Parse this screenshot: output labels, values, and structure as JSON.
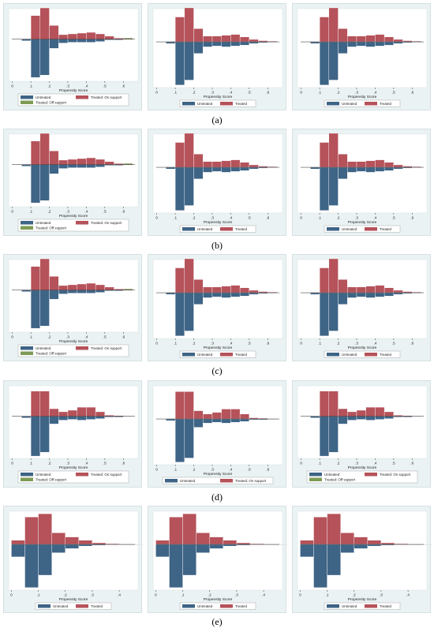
{
  "colors": {
    "untreated": "#3e6486",
    "treated": "#b5525a",
    "off_support": "#7d9b55",
    "panel_bg": "#eaf2f3",
    "plot_bg": "#ffffff"
  },
  "row_labels": [
    "(a)",
    "(b)",
    "(c)",
    "(d)",
    "(e)"
  ],
  "chart_data": [
    {
      "type": "bar",
      "row": "a",
      "col": 0,
      "xlabel": "Propensity Score",
      "xticks": [
        0,
        0.1,
        0.2,
        0.3,
        0.4,
        0.5,
        0.6
      ],
      "xtick_labels": [
        "0",
        ".1",
        ".2",
        ".3",
        ".4",
        ".5",
        ".6"
      ],
      "xlim": [
        -0.02,
        0.68
      ],
      "ylim": [
        -0.55,
        0.4
      ],
      "bin_width": 0.05,
      "bins": [
        0.075,
        0.125,
        0.175,
        0.225,
        0.275,
        0.325,
        0.375,
        0.425,
        0.475,
        0.525,
        0.575,
        0.625
      ],
      "untreated": [
        0.02,
        0.5,
        0.47,
        0.12,
        0.05,
        0.04,
        0.04,
        0.04,
        0.03,
        0.01,
        0.01,
        0.005
      ],
      "treated": [
        0.005,
        0.31,
        0.41,
        0.18,
        0.06,
        0.07,
        0.08,
        0.09,
        0.07,
        0.04,
        0.015,
        0.01
      ],
      "off_support": [
        0,
        0,
        0,
        0,
        0,
        0,
        0,
        0,
        0,
        0,
        0,
        0.01
      ],
      "legend": [
        "Untreated",
        "Treated: On support",
        "Treated: Off support"
      ]
    },
    {
      "type": "bar",
      "row": "a",
      "col": 1,
      "xlabel": "Propensity Score",
      "xticks": [
        0,
        0.1,
        0.2,
        0.3,
        0.4,
        0.5,
        0.6
      ],
      "xtick_labels": [
        "0",
        ".1",
        ".2",
        ".3",
        ".4",
        ".5",
        ".6"
      ],
      "xlim": [
        -0.02,
        0.68
      ],
      "ylim": [
        -0.55,
        0.4
      ],
      "bin_width": 0.05,
      "bins": [
        0.075,
        0.125,
        0.175,
        0.225,
        0.275,
        0.325,
        0.375,
        0.425,
        0.475,
        0.525,
        0.575,
        0.625
      ],
      "untreated": [
        0.02,
        0.52,
        0.46,
        0.14,
        0.06,
        0.05,
        0.06,
        0.05,
        0.04,
        0.02,
        0.01,
        0.005
      ],
      "treated": [
        0.005,
        0.3,
        0.41,
        0.16,
        0.07,
        0.07,
        0.08,
        0.09,
        0.06,
        0.03,
        0.015,
        0.01
      ],
      "legend": [
        "Untreated",
        "Treated"
      ]
    },
    {
      "type": "bar",
      "row": "a",
      "col": 2,
      "xlabel": "Propensity Score",
      "xticks": [
        0,
        0.1,
        0.2,
        0.3,
        0.4,
        0.5,
        0.6
      ],
      "xtick_labels": [
        "0",
        ".1",
        ".2",
        ".3",
        ".4",
        ".5",
        ".6"
      ],
      "xlim": [
        -0.02,
        0.68
      ],
      "ylim": [
        -0.55,
        0.4
      ],
      "bin_width": 0.05,
      "bins": [
        0.075,
        0.125,
        0.175,
        0.225,
        0.275,
        0.325,
        0.375,
        0.425,
        0.475,
        0.525,
        0.575,
        0.625
      ],
      "untreated": [
        0.02,
        0.52,
        0.46,
        0.14,
        0.06,
        0.05,
        0.06,
        0.05,
        0.04,
        0.02,
        0.01,
        0.005
      ],
      "treated": [
        0.005,
        0.3,
        0.41,
        0.16,
        0.07,
        0.07,
        0.08,
        0.09,
        0.06,
        0.03,
        0.015,
        0.01
      ],
      "legend": [
        "Untreated",
        "Treated"
      ]
    },
    {
      "type": "bar",
      "row": "b",
      "col": 0,
      "xlabel": "Propensity Score",
      "xticks": [
        0,
        0.1,
        0.2,
        0.3,
        0.4,
        0.5,
        0.6
      ],
      "xtick_labels": [
        "0",
        ".1",
        ".2",
        ".3",
        ".4",
        ".5",
        ".6"
      ],
      "xlim": [
        -0.02,
        0.68
      ],
      "ylim": [
        -0.55,
        0.4
      ],
      "bin_width": 0.05,
      "bins": [
        0.075,
        0.125,
        0.175,
        0.225,
        0.275,
        0.325,
        0.375,
        0.425,
        0.475,
        0.525,
        0.575,
        0.625
      ],
      "untreated": [
        0.02,
        0.5,
        0.47,
        0.12,
        0.05,
        0.04,
        0.04,
        0.04,
        0.03,
        0.01,
        0.01,
        0.005
      ],
      "treated": [
        0.005,
        0.31,
        0.41,
        0.18,
        0.06,
        0.07,
        0.08,
        0.09,
        0.07,
        0.04,
        0.015,
        0.01
      ],
      "off_support": [
        0,
        0,
        0,
        0,
        0,
        0,
        0,
        0,
        0,
        0,
        0,
        0.01
      ],
      "legend": [
        "Untreated",
        "Treated: On support",
        "Treated: Off support"
      ]
    },
    {
      "type": "bar",
      "row": "b",
      "col": 1,
      "xlabel": "Propensity Score",
      "xticks": [
        0,
        0.1,
        0.2,
        0.3,
        0.4,
        0.5,
        0.6
      ],
      "xtick_labels": [
        "0",
        ".1",
        ".2",
        ".3",
        ".4",
        ".5",
        ".6"
      ],
      "xlim": [
        -0.02,
        0.68
      ],
      "ylim": [
        -0.55,
        0.4
      ],
      "bin_width": 0.05,
      "bins": [
        0.075,
        0.125,
        0.175,
        0.225,
        0.275,
        0.325,
        0.375,
        0.425,
        0.475,
        0.525,
        0.575,
        0.625
      ],
      "untreated": [
        0.02,
        0.52,
        0.46,
        0.14,
        0.06,
        0.05,
        0.06,
        0.05,
        0.04,
        0.02,
        0.01,
        0.005
      ],
      "treated": [
        0.005,
        0.3,
        0.41,
        0.16,
        0.07,
        0.07,
        0.08,
        0.09,
        0.06,
        0.03,
        0.015,
        0.01
      ],
      "legend": [
        "Untreated",
        "Treated"
      ]
    },
    {
      "type": "bar",
      "row": "b",
      "col": 2,
      "xlabel": "Propensity Score",
      "xticks": [
        0,
        0.1,
        0.2,
        0.3,
        0.4,
        0.5,
        0.6
      ],
      "xtick_labels": [
        "0",
        ".1",
        ".2",
        ".3",
        ".4",
        ".5",
        ".6"
      ],
      "xlim": [
        -0.02,
        0.68
      ],
      "ylim": [
        -0.55,
        0.4
      ],
      "bin_width": 0.05,
      "bins": [
        0.075,
        0.125,
        0.175,
        0.225,
        0.275,
        0.325,
        0.375,
        0.425,
        0.475,
        0.525,
        0.575,
        0.625
      ],
      "untreated": [
        0.02,
        0.52,
        0.46,
        0.14,
        0.06,
        0.05,
        0.06,
        0.05,
        0.04,
        0.02,
        0.01,
        0.005
      ],
      "treated": [
        0.005,
        0.3,
        0.41,
        0.16,
        0.07,
        0.07,
        0.08,
        0.09,
        0.06,
        0.03,
        0.015,
        0.01
      ],
      "legend": [
        "Untreated",
        "Treated"
      ]
    },
    {
      "type": "bar",
      "row": "c",
      "col": 0,
      "xlabel": "Propensity Score",
      "xticks": [
        0,
        0.1,
        0.2,
        0.3,
        0.4,
        0.5,
        0.6
      ],
      "xtick_labels": [
        "0",
        ".1",
        ".2",
        ".3",
        ".4",
        ".5",
        ".6"
      ],
      "xlim": [
        -0.02,
        0.68
      ],
      "ylim": [
        -0.55,
        0.4
      ],
      "bin_width": 0.05,
      "bins": [
        0.075,
        0.125,
        0.175,
        0.225,
        0.275,
        0.325,
        0.375,
        0.425,
        0.475,
        0.525,
        0.575,
        0.625
      ],
      "untreated": [
        0.02,
        0.5,
        0.47,
        0.12,
        0.05,
        0.04,
        0.04,
        0.04,
        0.03,
        0.01,
        0.01,
        0.005
      ],
      "treated": [
        0.005,
        0.31,
        0.41,
        0.18,
        0.06,
        0.07,
        0.08,
        0.09,
        0.07,
        0.04,
        0.015,
        0.01
      ],
      "off_support": [
        0,
        0,
        0,
        0,
        0,
        0,
        0,
        0,
        0,
        0,
        0,
        0.01
      ],
      "legend": [
        "Untreated",
        "Treated: On support",
        "Treated: Off support"
      ]
    },
    {
      "type": "bar",
      "row": "c",
      "col": 1,
      "xlabel": "Propensity Score",
      "xticks": [
        0,
        0.1,
        0.2,
        0.3,
        0.4,
        0.5,
        0.6
      ],
      "xtick_labels": [
        "0",
        ".1",
        ".2",
        ".3",
        ".4",
        ".5",
        ".6"
      ],
      "xlim": [
        -0.02,
        0.68
      ],
      "ylim": [
        -0.55,
        0.4
      ],
      "bin_width": 0.05,
      "bins": [
        0.075,
        0.125,
        0.175,
        0.225,
        0.275,
        0.325,
        0.375,
        0.425,
        0.475,
        0.525,
        0.575,
        0.625
      ],
      "untreated": [
        0.02,
        0.52,
        0.46,
        0.14,
        0.06,
        0.05,
        0.06,
        0.05,
        0.04,
        0.02,
        0.01,
        0.005
      ],
      "treated": [
        0.005,
        0.3,
        0.41,
        0.16,
        0.07,
        0.07,
        0.08,
        0.09,
        0.06,
        0.03,
        0.015,
        0.01
      ],
      "legend": [
        "Untreated",
        "Treated"
      ]
    },
    {
      "type": "bar",
      "row": "c",
      "col": 2,
      "xlabel": "Propensity Score",
      "xticks": [
        0,
        0.1,
        0.2,
        0.3,
        0.4,
        0.5,
        0.6
      ],
      "xtick_labels": [
        "0",
        ".1",
        ".2",
        ".3",
        ".4",
        ".5",
        ".6"
      ],
      "xlim": [
        -0.02,
        0.68
      ],
      "ylim": [
        -0.55,
        0.4
      ],
      "bin_width": 0.05,
      "bins": [
        0.075,
        0.125,
        0.175,
        0.225,
        0.275,
        0.325,
        0.375,
        0.425,
        0.475,
        0.525,
        0.575,
        0.625
      ],
      "untreated": [
        0.02,
        0.52,
        0.46,
        0.14,
        0.06,
        0.05,
        0.06,
        0.05,
        0.04,
        0.02,
        0.01,
        0.005
      ],
      "treated": [
        0.005,
        0.3,
        0.41,
        0.16,
        0.07,
        0.07,
        0.08,
        0.09,
        0.06,
        0.03,
        0.015,
        0.01
      ],
      "legend": [
        "Untreated",
        "Treated"
      ]
    },
    {
      "type": "bar",
      "row": "d",
      "col": 0,
      "xlabel": "Propensity Score",
      "xticks": [
        0,
        0.1,
        0.2,
        0.3,
        0.4,
        0.5,
        0.6
      ],
      "xtick_labels": [
        "0",
        ".1",
        ".2",
        ".3",
        ".4",
        ".5",
        ".6"
      ],
      "xlim": [
        -0.02,
        0.68
      ],
      "ylim": [
        -0.55,
        0.4
      ],
      "bin_width": 0.05,
      "bins": [
        0.075,
        0.125,
        0.175,
        0.225,
        0.275,
        0.325,
        0.375,
        0.425,
        0.475,
        0.525,
        0.575,
        0.625
      ],
      "untreated": [
        0.02,
        0.52,
        0.47,
        0.1,
        0.05,
        0.04,
        0.05,
        0.04,
        0.03,
        0.01,
        0.01,
        0.005
      ],
      "treated": [
        0.005,
        0.33,
        0.33,
        0.1,
        0.06,
        0.08,
        0.12,
        0.12,
        0.06,
        0.015,
        0.01,
        0.005
      ],
      "off_support": [
        0,
        0,
        0,
        0,
        0,
        0,
        0,
        0,
        0,
        0,
        0,
        0
      ],
      "legend": [
        "Untreated",
        "Treated: On support",
        "Treated: Off support"
      ]
    },
    {
      "type": "bar",
      "row": "d",
      "col": 1,
      "xlabel": "Propensity Score",
      "xticks": [
        0,
        0.1,
        0.2,
        0.3,
        0.4,
        0.5,
        0.6
      ],
      "xtick_labels": [
        "0",
        ".1",
        ".2",
        ".3",
        ".4",
        ".5",
        ".6"
      ],
      "xlim": [
        -0.02,
        0.68
      ],
      "ylim": [
        -0.55,
        0.4
      ],
      "bin_width": 0.05,
      "bins": [
        0.075,
        0.125,
        0.175,
        0.225,
        0.275,
        0.325,
        0.375,
        0.425,
        0.475,
        0.525,
        0.575,
        0.625
      ],
      "untreated": [
        0.02,
        0.52,
        0.47,
        0.1,
        0.05,
        0.04,
        0.05,
        0.04,
        0.03,
        0.01,
        0.01,
        0.005
      ],
      "treated": [
        0.005,
        0.33,
        0.33,
        0.1,
        0.06,
        0.08,
        0.12,
        0.12,
        0.06,
        0.015,
        0.01,
        0.005
      ],
      "legend": [
        "Untreated",
        "Treated: On support"
      ]
    },
    {
      "type": "bar",
      "row": "d",
      "col": 2,
      "xlabel": "Propensity Score",
      "xticks": [
        0,
        0.1,
        0.2,
        0.3,
        0.4,
        0.5,
        0.6
      ],
      "xtick_labels": [
        "0",
        ".1",
        ".2",
        ".3",
        ".4",
        ".5",
        ".6"
      ],
      "xlim": [
        -0.02,
        0.68
      ],
      "ylim": [
        -0.55,
        0.4
      ],
      "bin_width": 0.05,
      "bins": [
        0.075,
        0.125,
        0.175,
        0.225,
        0.275,
        0.325,
        0.375,
        0.425,
        0.475,
        0.525,
        0.575,
        0.625
      ],
      "untreated": [
        0.02,
        0.52,
        0.47,
        0.1,
        0.05,
        0.04,
        0.05,
        0.04,
        0.03,
        0.01,
        0.01,
        0.005
      ],
      "treated": [
        0.005,
        0.33,
        0.33,
        0.1,
        0.06,
        0.08,
        0.12,
        0.12,
        0.06,
        0.015,
        0.01,
        0.005
      ],
      "off_support": [
        0,
        0,
        0,
        0,
        0,
        0,
        0,
        0,
        0,
        0,
        0,
        0
      ],
      "legend": [
        "Untreated",
        "Treated: On support",
        "Treated: Off support"
      ]
    },
    {
      "type": "bar",
      "row": "e",
      "col": 0,
      "xlabel": "Propensity Score",
      "xticks": [
        0,
        0.1,
        0.2,
        0.3,
        0.4
      ],
      "xtick_labels": [
        "0",
        ".1",
        ".2",
        ".3",
        ".4"
      ],
      "xlim": [
        -0.01,
        0.47
      ],
      "ylim": [
        -0.55,
        0.4
      ],
      "bin_width": 0.05,
      "bins": [
        0.025,
        0.075,
        0.125,
        0.175,
        0.225,
        0.275,
        0.325,
        0.375,
        0.425,
        0.475
      ],
      "untreated": [
        0.15,
        0.52,
        0.37,
        0.1,
        0.05,
        0.02,
        0.01,
        0.005,
        0.005,
        0.005
      ],
      "treated": [
        0.05,
        0.33,
        0.37,
        0.14,
        0.09,
        0.05,
        0.02,
        0.01,
        0.005,
        0.005
      ],
      "legend": [
        "Untreated",
        "Treated"
      ]
    },
    {
      "type": "bar",
      "row": "e",
      "col": 1,
      "xlabel": "Propensity Score",
      "xticks": [
        0,
        0.1,
        0.2,
        0.3,
        0.4
      ],
      "xtick_labels": [
        "0",
        ".1",
        ".2",
        ".3",
        ".4"
      ],
      "xlim": [
        -0.01,
        0.47
      ],
      "ylim": [
        -0.55,
        0.4
      ],
      "bin_width": 0.05,
      "bins": [
        0.025,
        0.075,
        0.125,
        0.175,
        0.225,
        0.275,
        0.325,
        0.375,
        0.425,
        0.475
      ],
      "untreated": [
        0.15,
        0.52,
        0.37,
        0.1,
        0.05,
        0.02,
        0.01,
        0.005,
        0.005,
        0.005
      ],
      "treated": [
        0.05,
        0.33,
        0.37,
        0.14,
        0.09,
        0.05,
        0.02,
        0.01,
        0.005,
        0.005
      ],
      "legend": [
        "Untreated",
        "Treated"
      ]
    },
    {
      "type": "bar",
      "row": "e",
      "col": 2,
      "xlabel": "Propensity Score",
      "xticks": [
        0,
        0.1,
        0.2,
        0.3,
        0.4
      ],
      "xtick_labels": [
        "0",
        ".1",
        ".2",
        ".3",
        ".4"
      ],
      "xlim": [
        -0.01,
        0.47
      ],
      "ylim": [
        -0.55,
        0.4
      ],
      "bin_width": 0.05,
      "bins": [
        0.025,
        0.075,
        0.125,
        0.175,
        0.225,
        0.275,
        0.325,
        0.375,
        0.425,
        0.475
      ],
      "untreated": [
        0.15,
        0.52,
        0.37,
        0.1,
        0.05,
        0.02,
        0.01,
        0.005,
        0.005,
        0.005
      ],
      "treated": [
        0.05,
        0.33,
        0.37,
        0.14,
        0.09,
        0.05,
        0.02,
        0.01,
        0.005,
        0.005
      ],
      "legend": [
        "Untreated",
        "Treated"
      ]
    }
  ]
}
